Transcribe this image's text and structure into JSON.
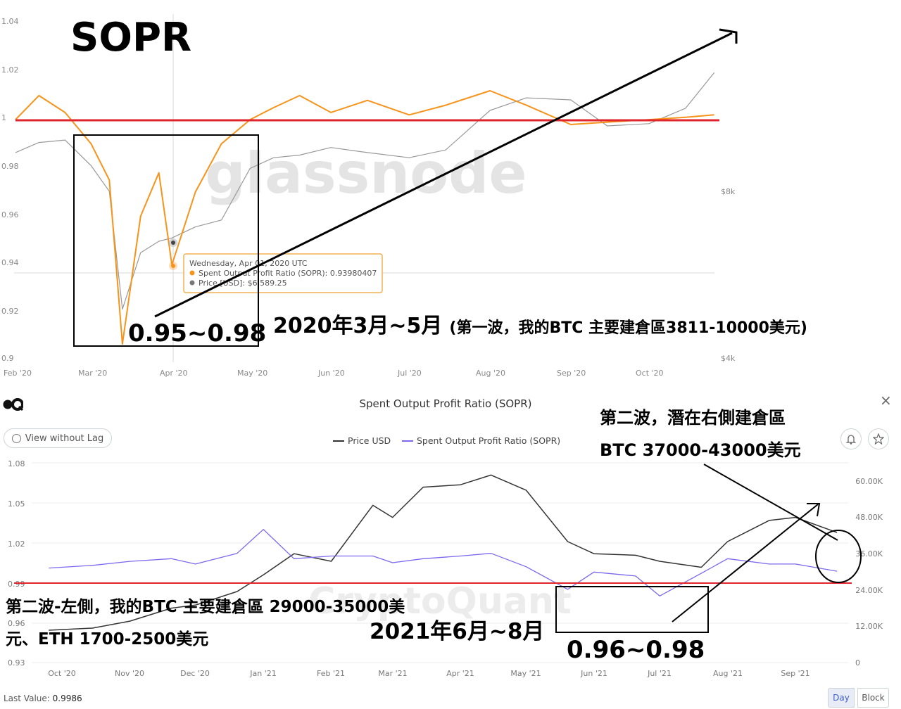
{
  "top_chart": {
    "watermark": "glassnode",
    "big_label": "SOPR",
    "y_ticks": [
      "1.04",
      "1.02",
      "1",
      "0.98",
      "0.96",
      "0.94",
      "0.92",
      "0.9"
    ],
    "right_ticks": [
      "$8k",
      "$4k"
    ],
    "x_ticks": [
      "Feb '20",
      "Mar '20",
      "Apr '20",
      "May '20",
      "Jun '20",
      "Jul '20",
      "Aug '20",
      "Sep '20",
      "Oct '20"
    ],
    "tooltip": {
      "date": "Wednesday, Apr 01, 2020 UTC",
      "sopr_label": "Spent Output Profit Ratio (SOPR): ",
      "sopr_value": "0.93980407",
      "price_label": "Price [USD]: ",
      "price_value": "$6,589.25"
    },
    "box_label": "0.95~0.98",
    "wave_label_main": "2020年3月~5月",
    "wave_label_sub": "(第一波，我的BTC 主要建倉區3811-10000美元)",
    "colors": {
      "sopr": "#f7931a",
      "price": "#999999",
      "baseline": "#e0262c"
    }
  },
  "bottom_chart": {
    "title": "Spent Output Profit Ratio (SOPR)",
    "view_button": "View without Lag",
    "legend": [
      {
        "name": "Price USD",
        "color": "#333333"
      },
      {
        "name": "Spent Output Profit Ratio (SOPR)",
        "color": "#7b68ee"
      }
    ],
    "y_ticks": [
      "1.08",
      "1.05",
      "1.02",
      "0.99",
      "0.96",
      "0.93"
    ],
    "right_ticks": [
      "60.00K",
      "48.00K",
      "36.00K",
      "24.00K",
      "12.00K",
      "0"
    ],
    "x_ticks": [
      "Oct '20",
      "Nov '20",
      "Dec '20",
      "Jan '21",
      "Feb '21",
      "Mar '21",
      "Apr '21",
      "May '21",
      "Jun '21",
      "Jul '21",
      "Aug '21",
      "Sep '21"
    ],
    "watermark": "CryptoQuant",
    "last_value_label": "Last Value: ",
    "last_value": "0.9986",
    "period_buttons": [
      "Day",
      "Block"
    ],
    "ann_right_line1": "第二波，潛在右側建倉區",
    "ann_right_line2": "BTC 37000-43000美元",
    "ann_left_line1": "第二波-左側，我的BTC 主要建倉區 29000-35000美",
    "ann_left_line2": "元、ETH 1700-2500美元",
    "ann_period": "2021年6月~8月",
    "box_label": "0.96~0.98",
    "colors": {
      "baseline": "#e0262c"
    }
  },
  "chart_data": [
    {
      "type": "line",
      "title": "SOPR",
      "x": [
        "2020-02-01",
        "2020-02-10",
        "2020-02-20",
        "2020-03-01",
        "2020-03-08",
        "2020-03-13",
        "2020-03-20",
        "2020-03-27",
        "2020-04-01",
        "2020-04-10",
        "2020-04-20",
        "2020-05-01",
        "2020-05-10",
        "2020-05-20",
        "2020-06-01",
        "2020-06-15",
        "2020-07-01",
        "2020-07-15",
        "2020-08-01",
        "2020-08-15",
        "2020-09-01",
        "2020-09-15",
        "2020-10-01",
        "2020-10-15",
        "2020-10-26"
      ],
      "series": [
        {
          "name": "Spent Output Profit Ratio (SOPR)",
          "values": [
            1.0,
            1.01,
            1.003,
            0.99,
            0.975,
            0.907,
            0.96,
            0.978,
            0.9398,
            0.97,
            0.99,
            1.0,
            1.005,
            1.01,
            1.003,
            1.008,
            1.002,
            1.006,
            1.012,
            1.006,
            0.998,
            0.999,
            1.0,
            1.001,
            1.002
          ]
        },
        {
          "name": "Price [USD]",
          "values": [
            9400,
            9800,
            9900,
            8900,
            8000,
            4900,
            6200,
            6500,
            6589,
            6900,
            7100,
            8800,
            9200,
            9300,
            9600,
            9400,
            9200,
            9500,
            11200,
            11800,
            11700,
            10500,
            10600,
            11300,
            13100
          ]
        }
      ],
      "ylim": [
        0.9,
        1.04
      ]
    },
    {
      "type": "line",
      "title": "Spent Output Profit Ratio (SOPR)",
      "x": [
        "2020-09-25",
        "2020-10-15",
        "2020-11-01",
        "2020-11-20",
        "2020-12-01",
        "2020-12-20",
        "2021-01-01",
        "2021-01-15",
        "2021-02-01",
        "2021-02-20",
        "2021-03-01",
        "2021-03-15",
        "2021-04-01",
        "2021-04-15",
        "2021-05-01",
        "2021-05-20",
        "2021-06-01",
        "2021-06-20",
        "2021-07-01",
        "2021-07-20",
        "2021-08-01",
        "2021-08-20",
        "2021-09-01",
        "2021-09-20"
      ],
      "series": [
        {
          "name": "Price USD",
          "values": [
            10700,
            11400,
            13700,
            18000,
            19000,
            23500,
            29000,
            36000,
            33500,
            52000,
            48000,
            58000,
            58800,
            62000,
            57000,
            40000,
            36000,
            35500,
            33500,
            31500,
            40000,
            47000,
            48000,
            43000
          ]
        },
        {
          "name": "Spent Output Profit Ratio (SOPR)",
          "values": [
            1.001,
            1.003,
            1.006,
            1.008,
            1.004,
            1.012,
            1.03,
            1.008,
            1.01,
            1.01,
            1.005,
            1.008,
            1.01,
            1.012,
            1.002,
            0.985,
            0.998,
            0.995,
            0.98,
            0.997,
            1.008,
            1.004,
            1.004,
            0.9986
          ]
        }
      ],
      "ylim": [
        0.93,
        1.08
      ]
    }
  ]
}
